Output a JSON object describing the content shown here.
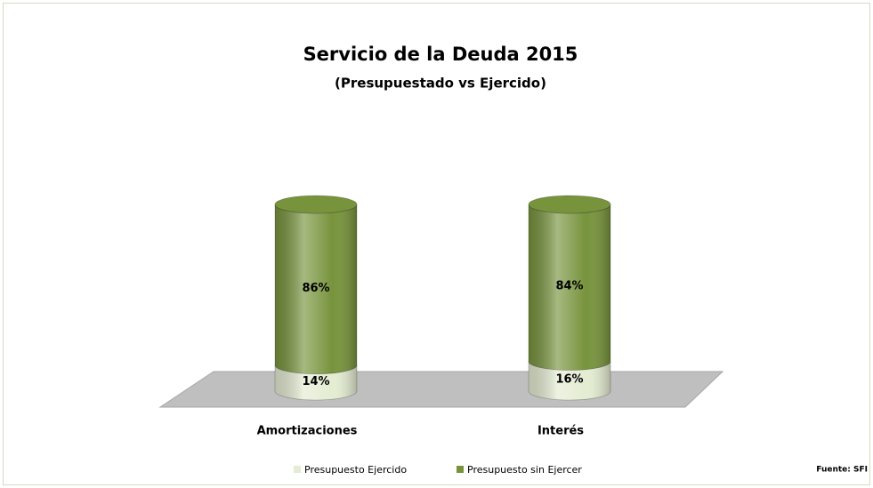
{
  "chart_data": {
    "type": "bar",
    "stacked": true,
    "title": "Servicio de la Deuda 2015",
    "subtitle": "(Presupuestado vs Ejercido)",
    "categories": [
      "Amortizaciones",
      "Interés"
    ],
    "series": [
      {
        "name": "Presupuesto Ejercido",
        "color": "#e4ecd2",
        "values": [
          14,
          16
        ],
        "value_labels": [
          "14%",
          "16%"
        ]
      },
      {
        "name": "Presupuesto sin Ejercer",
        "color": "#77933c",
        "values": [
          86,
          84
        ],
        "value_labels": [
          "86%",
          "84%"
        ]
      }
    ],
    "source": "Fuente: SFI",
    "legend": "bottom"
  }
}
